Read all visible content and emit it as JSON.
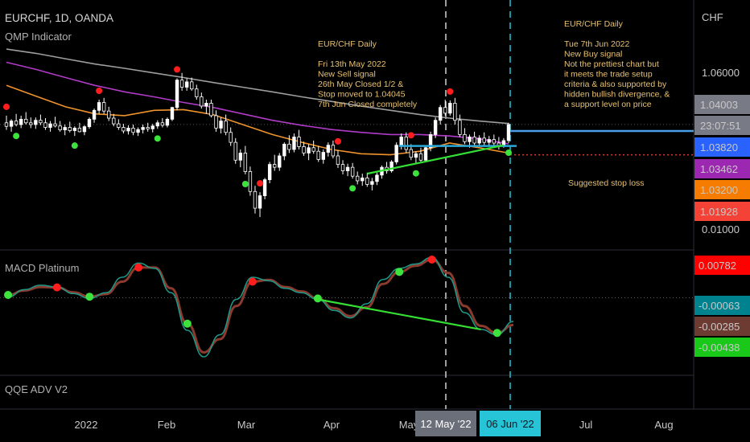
{
  "header": {
    "symbol_line": "EURCHF, 1D, OANDA",
    "indicator_main": "QMP Indicator",
    "indicator_macd": "MACD Platinum",
    "indicator_qqe": "QQE ADV V2"
  },
  "axis": {
    "currency": "CHF",
    "price_tick": "1.06000",
    "macd_top_tick": "0.01000",
    "x_ticks": [
      "2022",
      "Feb",
      "Mar",
      "Apr",
      "May",
      "Jul",
      "Aug"
    ],
    "date_marker_1": "12 May '22",
    "date_marker_2": "06 Jun '22"
  },
  "price_badges": [
    {
      "label": "1.04003",
      "color": "#787b86"
    },
    {
      "label": "23:07:51",
      "color": "#787b86"
    },
    {
      "label": "1.03820",
      "color": "#2962ff"
    },
    {
      "label": "1.03462",
      "color": "#9c27b0"
    },
    {
      "label": "1.03200",
      "color": "#f57c00"
    },
    {
      "label": "1.01928",
      "color": "#f44336"
    }
  ],
  "macd_badges": [
    {
      "label": "0.00782",
      "color": "#ff0000"
    },
    {
      "label": "-0.00063",
      "color": "#00838f"
    },
    {
      "label": "-0.00285",
      "color": "#6d3b32"
    },
    {
      "label": "-0.00438",
      "color": "#19c819"
    }
  ],
  "annotations": {
    "sell_note": [
      "EUR/CHF Daily",
      "",
      "Fri 13th May 2022",
      "New Sell signal",
      "26th May Closed 1/2 &",
      "Stop moved to 1.04045",
      "7th Jun Closed completely"
    ],
    "buy_note": [
      "EUR/CHF Daily",
      "",
      "Tue 7th Jun 2022",
      "New Buy signal",
      "Not the prettiest chart but",
      "it meets the trade setup",
      "criteria & also supported by",
      "hidden bullish divergence, &",
      "a support level on price"
    ],
    "stop_label": "Suggested stop loss"
  },
  "colors": {
    "background": "#000000",
    "up_candle": "#ffffff",
    "down_candle": "#ffffff",
    "ma_gray": "#9e9e9e",
    "ma_purple": "#b03bc7",
    "ma_orange": "#f0932b",
    "sell_dot": "#ff1e1e",
    "buy_dot": "#3ce33c",
    "support_line": "#2aa8d9",
    "entry_line": "#4a9fe8",
    "stop_line": "#e03030",
    "divergence_line": "#33e033",
    "macd_line": "#1f9a8a",
    "signal_line": "#8b3a2e"
  },
  "chart_data": {
    "type": "candlestick",
    "price_ylim": [
      1.005,
      1.075
    ],
    "price_ticks": [
      1.06
    ],
    "x": [
      "2021-12-20",
      "2022-01-03",
      "2022-02-01",
      "2022-03-01",
      "2022-04-01",
      "2022-05-02",
      "2022-05-12",
      "2022-06-06",
      "2022-07-01",
      "2022-08-01"
    ],
    "candles": [
      [
        1.0405,
        1.0425,
        1.0385,
        1.0395
      ],
      [
        1.0395,
        1.0415,
        1.038,
        1.041
      ],
      [
        1.041,
        1.043,
        1.0395,
        1.04
      ],
      [
        1.04,
        1.0425,
        1.039,
        1.0415
      ],
      [
        1.0415,
        1.0435,
        1.04,
        1.0405
      ],
      [
        1.0405,
        1.042,
        1.039,
        1.04
      ],
      [
        1.04,
        1.042,
        1.0388,
        1.0412
      ],
      [
        1.0412,
        1.0428,
        1.0398,
        1.0405
      ],
      [
        1.0405,
        1.0418,
        1.0385,
        1.0392
      ],
      [
        1.0392,
        1.041,
        1.038,
        1.0402
      ],
      [
        1.0402,
        1.0422,
        1.0392,
        1.0396
      ],
      [
        1.0396,
        1.041,
        1.038,
        1.0385
      ],
      [
        1.0385,
        1.04,
        1.037,
        1.0392
      ],
      [
        1.0392,
        1.0408,
        1.0378,
        1.0383
      ],
      [
        1.0383,
        1.0395,
        1.0368,
        1.039
      ],
      [
        1.039,
        1.0405,
        1.0378,
        1.038
      ],
      [
        1.038,
        1.0398,
        1.037,
        1.0394
      ],
      [
        1.0394,
        1.042,
        1.0388,
        1.0415
      ],
      [
        1.0415,
        1.0445,
        1.0405,
        1.044
      ],
      [
        1.044,
        1.047,
        1.043,
        1.0462
      ],
      [
        1.0462,
        1.0475,
        1.043,
        1.0438
      ],
      [
        1.0438,
        1.045,
        1.041,
        1.0418
      ],
      [
        1.0418,
        1.043,
        1.0395,
        1.0402
      ],
      [
        1.0402,
        1.0415,
        1.0385,
        1.0392
      ],
      [
        1.0392,
        1.0402,
        1.0375,
        1.0382
      ],
      [
        1.0382,
        1.0398,
        1.0372,
        1.039
      ],
      [
        1.039,
        1.04,
        1.037,
        1.0378
      ],
      [
        1.0378,
        1.0392,
        1.0368,
        1.0386
      ],
      [
        1.0386,
        1.04,
        1.0375,
        1.0392
      ],
      [
        1.0392,
        1.0405,
        1.038,
        1.0388
      ],
      [
        1.0388,
        1.0402,
        1.0378,
        1.0396
      ],
      [
        1.0396,
        1.0412,
        1.0388,
        1.0405
      ],
      [
        1.0405,
        1.0418,
        1.0392,
        1.0398
      ],
      [
        1.0398,
        1.042,
        1.0392,
        1.0415
      ],
      [
        1.0415,
        1.045,
        1.041,
        1.0448
      ],
      [
        1.0448,
        1.053,
        1.044,
        1.0525
      ],
      [
        1.0525,
        1.0545,
        1.0495,
        1.0505
      ],
      [
        1.0505,
        1.053,
        1.0495,
        1.052
      ],
      [
        1.052,
        1.0532,
        1.0495,
        1.05
      ],
      [
        1.05,
        1.0512,
        1.047,
        1.0478
      ],
      [
        1.0478,
        1.049,
        1.0445,
        1.0452
      ],
      [
        1.0452,
        1.047,
        1.043,
        1.046
      ],
      [
        1.046,
        1.047,
        1.042,
        1.0425
      ],
      [
        1.0425,
        1.044,
        1.038,
        1.039
      ],
      [
        1.039,
        1.042,
        1.0375,
        1.041
      ],
      [
        1.041,
        1.0428,
        1.037,
        1.0378
      ],
      [
        1.0378,
        1.0392,
        1.034,
        1.035
      ],
      [
        1.035,
        1.0362,
        1.029,
        1.03
      ],
      [
        1.03,
        1.033,
        1.028,
        1.032
      ],
      [
        1.032,
        1.034,
        1.026,
        1.0268
      ],
      [
        1.0268,
        1.0282,
        1.02,
        1.0212
      ],
      [
        1.0212,
        1.0228,
        1.015,
        1.0165
      ],
      [
        1.0165,
        1.021,
        1.014,
        1.02
      ],
      [
        1.02,
        1.025,
        1.019,
        1.0245
      ],
      [
        1.0245,
        1.0295,
        1.0235,
        1.0288
      ],
      [
        1.0288,
        1.0315,
        1.027,
        1.028
      ],
      [
        1.028,
        1.032,
        1.027,
        1.0312
      ],
      [
        1.0312,
        1.035,
        1.03,
        1.0345
      ],
      [
        1.0345,
        1.037,
        1.032,
        1.033
      ],
      [
        1.033,
        1.0375,
        1.0322,
        1.0365
      ],
      [
        1.0365,
        1.0385,
        1.033,
        1.0338
      ],
      [
        1.0338,
        1.0352,
        1.0312,
        1.032
      ],
      [
        1.032,
        1.0345,
        1.03,
        1.0335
      ],
      [
        1.0335,
        1.0355,
        1.0318,
        1.0325
      ],
      [
        1.0325,
        1.034,
        1.0295,
        1.0302
      ],
      [
        1.0302,
        1.033,
        1.029,
        1.0322
      ],
      [
        1.0322,
        1.035,
        1.031,
        1.0342
      ],
      [
        1.0342,
        1.0355,
        1.0305,
        1.0312
      ],
      [
        1.0312,
        1.0328,
        1.0278,
        1.0288
      ],
      [
        1.0288,
        1.03,
        1.026,
        1.027
      ],
      [
        1.027,
        1.029,
        1.0255,
        1.028
      ],
      [
        1.028,
        1.0292,
        1.0248,
        1.0255
      ],
      [
        1.0255,
        1.0268,
        1.0232,
        1.0242
      ],
      [
        1.0242,
        1.0262,
        1.0228,
        1.025
      ],
      [
        1.025,
        1.0265,
        1.0225,
        1.0232
      ],
      [
        1.0232,
        1.025,
        1.0215,
        1.024
      ],
      [
        1.024,
        1.0265,
        1.023,
        1.0258
      ],
      [
        1.0258,
        1.0285,
        1.0248,
        1.028
      ],
      [
        1.028,
        1.0295,
        1.0262,
        1.027
      ],
      [
        1.027,
        1.03,
        1.0265,
        1.0295
      ],
      [
        1.0295,
        1.035,
        1.0288,
        1.0342
      ],
      [
        1.0342,
        1.0375,
        1.033,
        1.0365
      ],
      [
        1.0365,
        1.0378,
        1.032,
        1.033
      ],
      [
        1.033,
        1.0345,
        1.03,
        1.0308
      ],
      [
        1.0308,
        1.0325,
        1.029,
        1.0318
      ],
      [
        1.0318,
        1.0335,
        1.0296,
        1.03
      ],
      [
        1.03,
        1.0342,
        1.0295,
        1.0335
      ],
      [
        1.0335,
        1.038,
        1.0325,
        1.0372
      ],
      [
        1.0372,
        1.042,
        1.0362,
        1.0412
      ],
      [
        1.0412,
        1.0455,
        1.04,
        1.0448
      ],
      [
        1.0448,
        1.047,
        1.0425,
        1.0432
      ],
      [
        1.0432,
        1.0468,
        1.0425,
        1.046
      ],
      [
        1.046,
        1.0475,
        1.04,
        1.0412
      ],
      [
        1.0412,
        1.0428,
        1.0365,
        1.0372
      ],
      [
        1.0372,
        1.039,
        1.0345,
        1.0352
      ],
      [
        1.0352,
        1.0372,
        1.0335,
        1.0365
      ],
      [
        1.0365,
        1.038,
        1.034,
        1.0348
      ],
      [
        1.0348,
        1.037,
        1.0338,
        1.0362
      ],
      [
        1.0362,
        1.0378,
        1.0342,
        1.035
      ],
      [
        1.035,
        1.0368,
        1.0338,
        1.0358
      ],
      [
        1.0358,
        1.0372,
        1.0342,
        1.0348
      ],
      [
        1.0348,
        1.0365,
        1.033,
        1.034
      ],
      [
        1.034,
        1.0362,
        1.0335,
        1.0355
      ],
      [
        1.0355,
        1.0405,
        1.0348,
        1.04
      ]
    ],
    "ma_gray": [
      1.0612,
      1.06,
      1.0585,
      1.057,
      1.0558,
      1.0545,
      1.0532,
      1.0518,
      1.0505,
      1.0492,
      1.0478,
      1.0465,
      1.0452,
      1.044,
      1.0428,
      1.0418,
      1.041,
      1.0403
    ],
    "ma_purple": [
      1.0575,
      1.0555,
      1.0532,
      1.051,
      1.0492,
      1.0478,
      1.0462,
      1.0448,
      1.043,
      1.0412,
      1.0398,
      1.0386,
      1.0378,
      1.0372,
      1.0372,
      1.0368,
      1.036,
      1.0346
    ],
    "ma_orange": [
      1.051,
      1.048,
      1.045,
      1.043,
      1.0425,
      1.044,
      1.0442,
      1.0428,
      1.04,
      1.0372,
      1.035,
      1.033,
      1.0318,
      1.0315,
      1.0325,
      1.0348,
      1.0335,
      1.032
    ],
    "levels": {
      "entry": 1.0382,
      "support": 1.034,
      "stop": 1.0315,
      "last": 1.04003
    },
    "sell_signals_idx": [
      0,
      19,
      35,
      52,
      68,
      83,
      91
    ],
    "buy_signals_idx": [
      2,
      14,
      31,
      49,
      71,
      84,
      103
    ],
    "macd": {
      "ylim": [
        -0.018,
        0.01
      ],
      "macd_line": [
        -0.0005,
        0.0012,
        0.0022,
        0.0018,
        0.0003,
        -0.0008,
        0.0005,
        0.004,
        0.0072,
        0.006,
        0.0005,
        -0.008,
        -0.014,
        -0.009,
        -0.001,
        0.004,
        0.0032,
        0.0015,
        0.0005,
        -0.001,
        -0.0035,
        -0.0052,
        -0.002,
        0.0035,
        0.006,
        0.007,
        0.0085,
        0.004,
        -0.004,
        -0.0078,
        -0.009,
        -0.006
      ],
      "signal_line": [
        0.0,
        0.001,
        0.0018,
        0.0017,
        0.0006,
        -0.0004,
        0.0002,
        0.003,
        0.0062,
        0.0062,
        0.0015,
        -0.0065,
        -0.013,
        -0.01,
        -0.0025,
        0.003,
        0.0034,
        0.0018,
        0.0008,
        -0.0008,
        -0.003,
        -0.0048,
        -0.0028,
        0.0025,
        0.0052,
        0.0066,
        0.008,
        0.005,
        -0.0025,
        -0.007,
        -0.0086,
        -0.0068
      ],
      "sell_idx": [
        3,
        8,
        15,
        26
      ],
      "buy_idx": [
        0,
        5,
        11,
        19,
        24,
        30
      ]
    }
  }
}
